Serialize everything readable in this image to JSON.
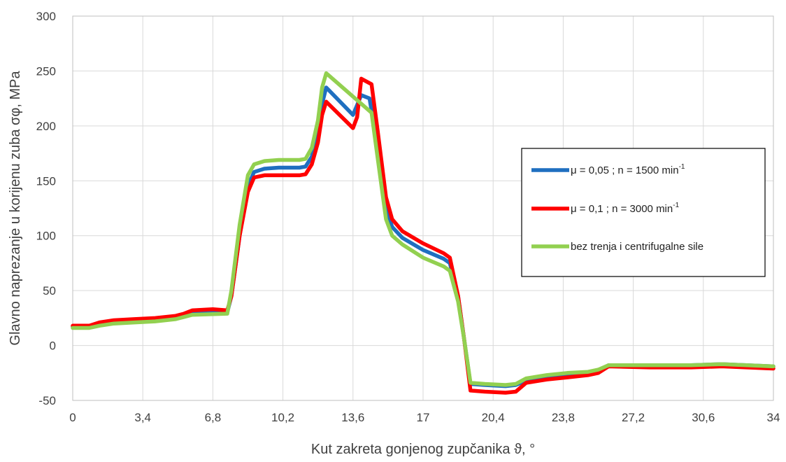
{
  "chart_data": {
    "type": "line",
    "title": "",
    "xlabel": "Kut zakreta gonjenog zupčanika ϑ, °",
    "ylabel": "Glavno naprezanje u korijenu zuba σφ, MPa",
    "xlim": [
      0,
      34
    ],
    "ylim": [
      -50,
      300
    ],
    "x_ticks": [
      "0",
      "3,4",
      "6,8",
      "10,2",
      "13,6",
      "17",
      "20,4",
      "23,8",
      "27,2",
      "30,6",
      "34"
    ],
    "y_ticks": [
      "-50",
      "0",
      "50",
      "100",
      "150",
      "200",
      "250",
      "300"
    ],
    "grid": true,
    "legend_position": "right",
    "series": [
      {
        "name": "μ = 0,05 ;    n = 1500 min-1",
        "legend_main": "μ = 0,05 ;    n = 1500 min",
        "legend_sup": "-1",
        "color": "#1f6fc0",
        "points": [
          [
            0,
            17
          ],
          [
            0.8,
            17
          ],
          [
            1.3,
            19
          ],
          [
            2,
            21
          ],
          [
            3,
            22
          ],
          [
            4,
            23
          ],
          [
            5,
            25
          ],
          [
            5.4,
            27
          ],
          [
            5.8,
            29
          ],
          [
            7.5,
            30
          ],
          [
            7.7,
            45
          ],
          [
            8.1,
            100
          ],
          [
            8.5,
            145
          ],
          [
            8.8,
            158
          ],
          [
            9.3,
            161
          ],
          [
            10,
            162
          ],
          [
            11,
            162
          ],
          [
            11.3,
            163
          ],
          [
            11.6,
            172
          ],
          [
            11.9,
            195
          ],
          [
            12.1,
            220
          ],
          [
            12.3,
            235
          ],
          [
            13.6,
            210
          ],
          [
            14,
            228
          ],
          [
            14.4,
            225
          ],
          [
            14.8,
            180
          ],
          [
            15.2,
            125
          ],
          [
            15.5,
            108
          ],
          [
            16,
            98
          ],
          [
            17,
            87
          ],
          [
            18,
            79
          ],
          [
            18.3,
            75
          ],
          [
            18.7,
            45
          ],
          [
            19,
            5
          ],
          [
            19.3,
            -35
          ],
          [
            20,
            -36
          ],
          [
            21,
            -37
          ],
          [
            21.5,
            -36
          ],
          [
            22,
            -32
          ],
          [
            23,
            -29
          ],
          [
            24,
            -27
          ],
          [
            25,
            -25
          ],
          [
            25.5,
            -23
          ],
          [
            26,
            -18
          ],
          [
            28,
            -18
          ],
          [
            30,
            -18
          ],
          [
            31.5,
            -17
          ],
          [
            34,
            -19
          ]
        ]
      },
      {
        "name": "μ = 0,1 ;    n = 3000 min-1",
        "legend_main": "μ = 0,1 ;    n = 3000 min",
        "legend_sup": "-1",
        "color": "#ff0000",
        "points": [
          [
            0,
            18
          ],
          [
            0.8,
            18
          ],
          [
            1.3,
            21
          ],
          [
            2,
            23
          ],
          [
            3,
            24
          ],
          [
            4,
            25
          ],
          [
            5,
            27
          ],
          [
            5.4,
            29
          ],
          [
            5.8,
            32
          ],
          [
            6.8,
            33
          ],
          [
            7.5,
            32
          ],
          [
            7.7,
            45
          ],
          [
            8.1,
            100
          ],
          [
            8.5,
            140
          ],
          [
            8.8,
            153
          ],
          [
            9.3,
            155
          ],
          [
            10,
            155
          ],
          [
            11,
            155
          ],
          [
            11.3,
            156
          ],
          [
            11.6,
            165
          ],
          [
            11.9,
            185
          ],
          [
            12.1,
            210
          ],
          [
            12.3,
            222
          ],
          [
            13.6,
            198
          ],
          [
            13.8,
            208
          ],
          [
            14.0,
            243
          ],
          [
            14.5,
            238
          ],
          [
            14.8,
            195
          ],
          [
            15.2,
            135
          ],
          [
            15.5,
            115
          ],
          [
            16,
            104
          ],
          [
            17,
            93
          ],
          [
            18,
            84
          ],
          [
            18.3,
            80
          ],
          [
            18.7,
            45
          ],
          [
            19,
            5
          ],
          [
            19.3,
            -41
          ],
          [
            20,
            -42
          ],
          [
            21,
            -43
          ],
          [
            21.5,
            -42
          ],
          [
            22,
            -34
          ],
          [
            23,
            -31
          ],
          [
            24,
            -29
          ],
          [
            25,
            -27
          ],
          [
            25.5,
            -25
          ],
          [
            26,
            -19
          ],
          [
            28,
            -20
          ],
          [
            30,
            -20
          ],
          [
            31.5,
            -19
          ],
          [
            34,
            -21
          ]
        ]
      },
      {
        "name": "bez trenja i centrifugalne sile",
        "legend_main": "bez trenja i centrifugalne sile",
        "legend_sup": "",
        "color": "#92d050",
        "points": [
          [
            0,
            16
          ],
          [
            0.8,
            16
          ],
          [
            1.3,
            18
          ],
          [
            2,
            20
          ],
          [
            3,
            21
          ],
          [
            4,
            22
          ],
          [
            5,
            24
          ],
          [
            5.4,
            26
          ],
          [
            5.8,
            28
          ],
          [
            7.5,
            29
          ],
          [
            7.7,
            50
          ],
          [
            8.1,
            110
          ],
          [
            8.5,
            155
          ],
          [
            8.8,
            165
          ],
          [
            9.3,
            168
          ],
          [
            10,
            169
          ],
          [
            11,
            169
          ],
          [
            11.3,
            170
          ],
          [
            11.6,
            180
          ],
          [
            11.9,
            205
          ],
          [
            12.1,
            235
          ],
          [
            12.3,
            248
          ],
          [
            14.5,
            212
          ],
          [
            14.8,
            170
          ],
          [
            15.2,
            115
          ],
          [
            15.5,
            100
          ],
          [
            16,
            92
          ],
          [
            17,
            80
          ],
          [
            18,
            72
          ],
          [
            18.3,
            68
          ],
          [
            18.7,
            40
          ],
          [
            19,
            5
          ],
          [
            19.3,
            -34
          ],
          [
            20,
            -35
          ],
          [
            21,
            -36
          ],
          [
            21.5,
            -35
          ],
          [
            22,
            -30
          ],
          [
            23,
            -27
          ],
          [
            24,
            -25
          ],
          [
            25,
            -24
          ],
          [
            25.5,
            -22
          ],
          [
            26,
            -18
          ],
          [
            28,
            -18
          ],
          [
            30,
            -18
          ],
          [
            31.5,
            -17
          ],
          [
            34,
            -19
          ]
        ]
      }
    ]
  }
}
